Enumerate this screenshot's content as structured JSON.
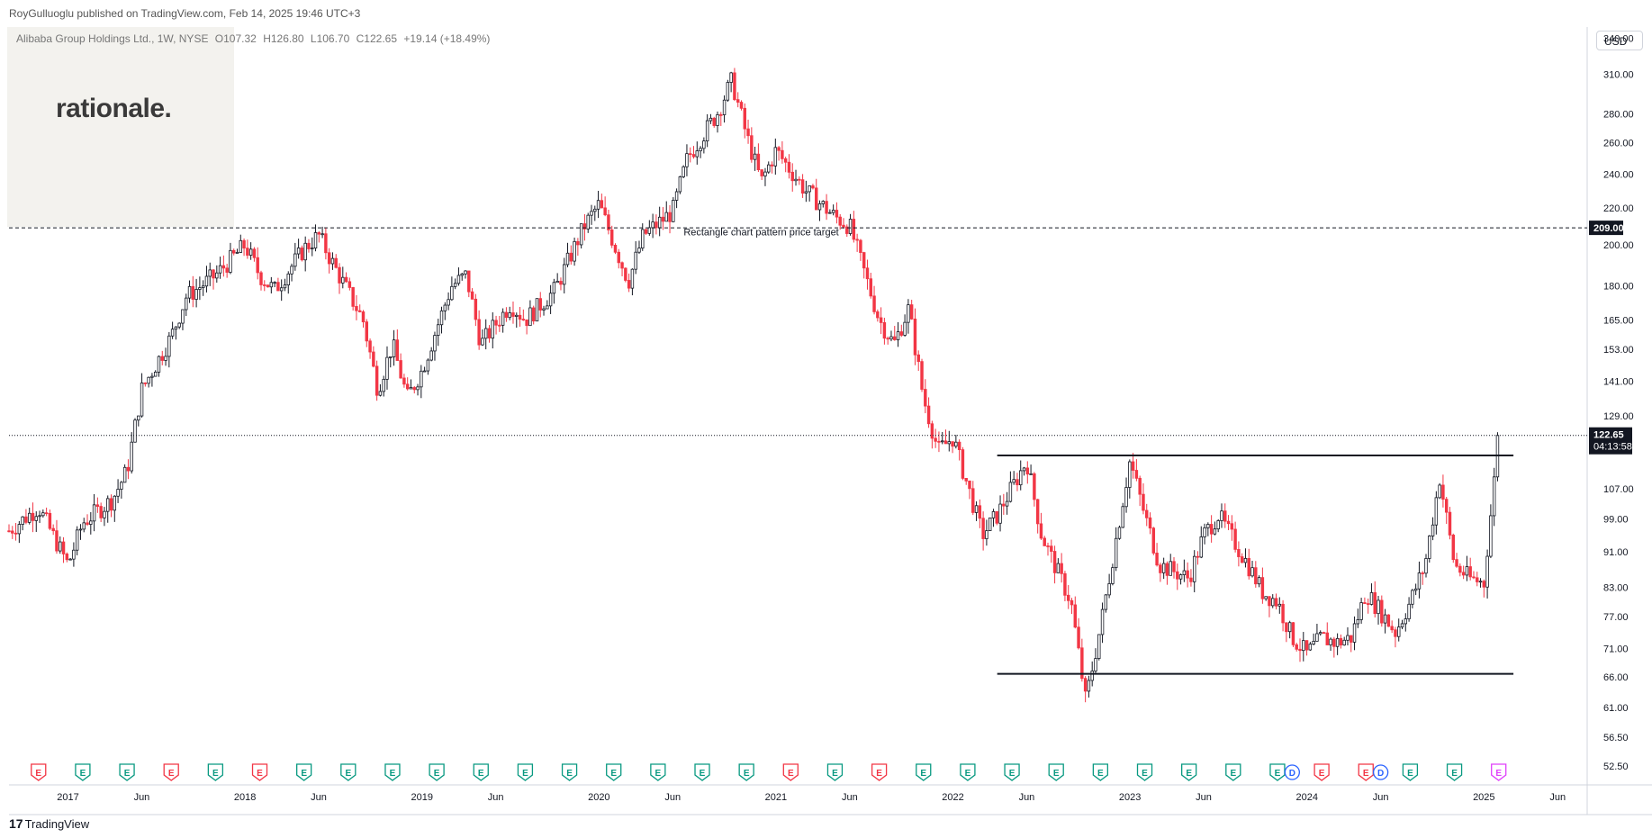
{
  "header": {
    "publisher_note": "RoyGulluoglu published on TradingView.com, Feb 14, 2025 19:46 UTC+3",
    "symbol": "Alibaba Group Holdings Ltd., 1W, NYSE",
    "open": "O107.32",
    "high": "H126.80",
    "low": "L106.70",
    "close": "C122.65",
    "change": "+19.14 (+18.49%)"
  },
  "brand": {
    "text": "rationale."
  },
  "footer": {
    "logo_text": "TradingView"
  },
  "price_scale": {
    "currency": "USD"
  },
  "colors": {
    "up": "#089981",
    "down": "#f23645",
    "candle_up_body": "#131722",
    "candle_down_body": "#f23645",
    "earnings": "#089981",
    "earnings_miss": "#f23645",
    "dividend": "#2962ff",
    "grid_text": "#131722"
  },
  "chart_data": {
    "type": "candlestick",
    "title": "Alibaba Group Holdings Ltd., 1W, NYSE",
    "y_scale": "log",
    "ylim": [
      50,
      350
    ],
    "y_ticks": [
      52.5,
      56.5,
      61,
      66,
      71,
      77,
      83,
      91,
      99,
      107,
      129,
      141,
      153,
      165,
      180,
      200,
      220,
      240,
      260,
      280,
      310,
      340
    ],
    "y_tick_labels": [
      "52.50",
      "56.50",
      "61.00",
      "66.00",
      "71.00",
      "77.00",
      "83.00",
      "91.00",
      "99.00",
      "107.00",
      "129.00",
      "141.00",
      "153.00",
      "165.00",
      "180.00",
      "200.00",
      "220.00",
      "240.00",
      "260.00",
      "280.00",
      "310.00",
      "340.00"
    ],
    "x_tick_labels": [
      "2017",
      "Jun",
      "2018",
      "Jun",
      "2019",
      "Jun",
      "2020",
      "Jun",
      "2021",
      "Jun",
      "2022",
      "Jun",
      "2023",
      "Jun",
      "2024",
      "Jun",
      "2025",
      "Jun"
    ],
    "x_range": [
      "2016-09",
      "2025-08"
    ],
    "price_path": [
      [
        "2016-09",
        96
      ],
      [
        "2016-11",
        102
      ],
      [
        "2017-01",
        88
      ],
      [
        "2017-02",
        98
      ],
      [
        "2017-04",
        104
      ],
      [
        "2017-05",
        112
      ],
      [
        "2017-06",
        138
      ],
      [
        "2017-08",
        158
      ],
      [
        "2017-09",
        175
      ],
      [
        "2017-11",
        185
      ],
      [
        "2018-01",
        200
      ],
      [
        "2018-02",
        185
      ],
      [
        "2018-03",
        178
      ],
      [
        "2018-05",
        198
      ],
      [
        "2018-06",
        205
      ],
      [
        "2018-07",
        190
      ],
      [
        "2018-09",
        165
      ],
      [
        "2018-10",
        138
      ],
      [
        "2018-11",
        155
      ],
      [
        "2018-12",
        135
      ],
      [
        "2019-01",
        145
      ],
      [
        "2019-03",
        180
      ],
      [
        "2019-04",
        185
      ],
      [
        "2019-05",
        155
      ],
      [
        "2019-07",
        172
      ],
      [
        "2019-08",
        165
      ],
      [
        "2019-10",
        178
      ],
      [
        "2019-12",
        210
      ],
      [
        "2020-01",
        222
      ],
      [
        "2020-03",
        182
      ],
      [
        "2020-04",
        205
      ],
      [
        "2020-06",
        218
      ],
      [
        "2020-07",
        250
      ],
      [
        "2020-09",
        280
      ],
      [
        "2020-10",
        305
      ],
      [
        "2020-11",
        265
      ],
      [
        "2020-12",
        235
      ],
      [
        "2021-01",
        255
      ],
      [
        "2021-03",
        230
      ],
      [
        "2021-05",
        215
      ],
      [
        "2021-06",
        210
      ],
      [
        "2021-08",
        165
      ],
      [
        "2021-09",
        155
      ],
      [
        "2021-10",
        170
      ],
      [
        "2021-11",
        135
      ],
      [
        "2021-12",
        118
      ],
      [
        "2022-01",
        122
      ],
      [
        "2022-03",
        95
      ],
      [
        "2022-04",
        100
      ],
      [
        "2022-06",
        115
      ],
      [
        "2022-07",
        95
      ],
      [
        "2022-09",
        80
      ],
      [
        "2022-10",
        62
      ],
      [
        "2022-11",
        75
      ],
      [
        "2023-01",
        115
      ],
      [
        "2023-02",
        100
      ],
      [
        "2023-03",
        88
      ],
      [
        "2023-05",
        85
      ],
      [
        "2023-06",
        95
      ],
      [
        "2023-07",
        100
      ],
      [
        "2023-09",
        88
      ],
      [
        "2023-10",
        82
      ],
      [
        "2023-11",
        80
      ],
      [
        "2023-12",
        73
      ],
      [
        "2024-01",
        70
      ],
      [
        "2024-02",
        73
      ],
      [
        "2024-03",
        72
      ],
      [
        "2024-04",
        73
      ],
      [
        "2024-05",
        82
      ],
      [
        "2024-06",
        78
      ],
      [
        "2024-07",
        74
      ],
      [
        "2024-08",
        80
      ],
      [
        "2024-09",
        88
      ],
      [
        "2024-10",
        110
      ],
      [
        "2024-11",
        88
      ],
      [
        "2024-12",
        85
      ],
      [
        "2025-01",
        84
      ],
      [
        "2025-02",
        122.65
      ]
    ],
    "horizontal_lines": [
      {
        "price": 209.0,
        "style": "dashed",
        "label": "209.00"
      },
      {
        "price": 116.5,
        "style": "solid",
        "from": "2022-04",
        "to": "2025-03"
      },
      {
        "price": 66.5,
        "style": "solid",
        "from": "2022-04",
        "to": "2025-03"
      }
    ],
    "annotations": [
      {
        "text": "Rectangle chart pattern price target",
        "at": "2020-12",
        "price": 205
      }
    ],
    "last_price": {
      "value": "122.65",
      "countdown": "04:13:58"
    },
    "events": [
      {
        "date": "2016-11",
        "type": "E",
        "color": "#f23645"
      },
      {
        "date": "2017-02",
        "type": "E",
        "color": "#089981"
      },
      {
        "date": "2017-05",
        "type": "E",
        "color": "#089981"
      },
      {
        "date": "2017-08",
        "type": "E",
        "color": "#f23645"
      },
      {
        "date": "2017-11",
        "type": "E",
        "color": "#089981"
      },
      {
        "date": "2018-02",
        "type": "E",
        "color": "#f23645"
      },
      {
        "date": "2018-05",
        "type": "E",
        "color": "#089981"
      },
      {
        "date": "2018-08",
        "type": "E",
        "color": "#089981"
      },
      {
        "date": "2018-11",
        "type": "E",
        "color": "#089981"
      },
      {
        "date": "2019-02",
        "type": "E",
        "color": "#089981"
      },
      {
        "date": "2019-05",
        "type": "E",
        "color": "#089981"
      },
      {
        "date": "2019-08",
        "type": "E",
        "color": "#089981"
      },
      {
        "date": "2019-11",
        "type": "E",
        "color": "#089981"
      },
      {
        "date": "2020-02",
        "type": "E",
        "color": "#089981"
      },
      {
        "date": "2020-05",
        "type": "E",
        "color": "#089981"
      },
      {
        "date": "2020-08",
        "type": "E",
        "color": "#089981"
      },
      {
        "date": "2020-11",
        "type": "E",
        "color": "#089981"
      },
      {
        "date": "2021-02",
        "type": "E",
        "color": "#f23645"
      },
      {
        "date": "2021-05",
        "type": "E",
        "color": "#089981"
      },
      {
        "date": "2021-08",
        "type": "E",
        "color": "#f23645"
      },
      {
        "date": "2021-11",
        "type": "E",
        "color": "#089981"
      },
      {
        "date": "2022-02",
        "type": "E",
        "color": "#089981"
      },
      {
        "date": "2022-05",
        "type": "E",
        "color": "#089981"
      },
      {
        "date": "2022-08",
        "type": "E",
        "color": "#089981"
      },
      {
        "date": "2022-11",
        "type": "E",
        "color": "#089981"
      },
      {
        "date": "2023-02",
        "type": "E",
        "color": "#089981"
      },
      {
        "date": "2023-05",
        "type": "E",
        "color": "#089981"
      },
      {
        "date": "2023-08",
        "type": "E",
        "color": "#089981"
      },
      {
        "date": "2023-11",
        "type": "E",
        "color": "#089981"
      },
      {
        "date": "2023-12",
        "type": "D",
        "color": "#2962ff"
      },
      {
        "date": "2024-02",
        "type": "E",
        "color": "#f23645"
      },
      {
        "date": "2024-05",
        "type": "E",
        "color": "#f23645"
      },
      {
        "date": "2024-06",
        "type": "D",
        "color": "#2962ff"
      },
      {
        "date": "2024-08",
        "type": "E",
        "color": "#089981"
      },
      {
        "date": "2024-11",
        "type": "E",
        "color": "#089981"
      },
      {
        "date": "2025-02",
        "type": "E",
        "color": "#e040fb"
      }
    ]
  }
}
